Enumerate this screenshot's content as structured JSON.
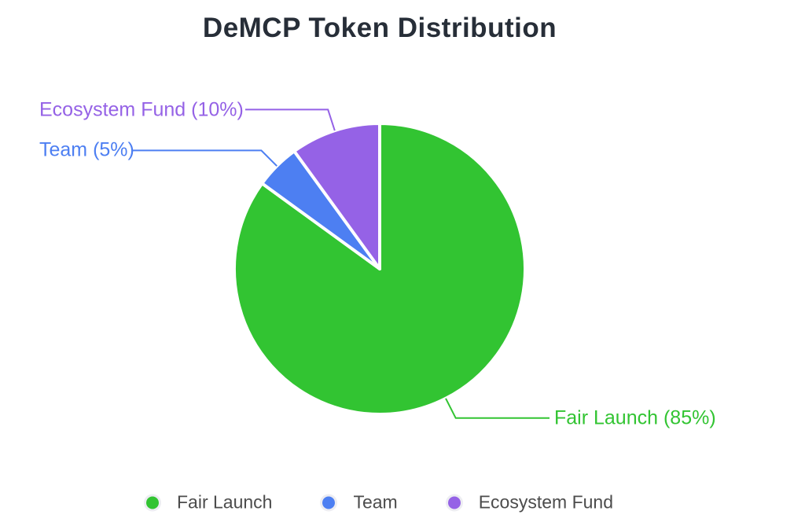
{
  "title": "DeMCP Token Distribution",
  "chart_data": {
    "type": "pie",
    "title": "DeMCP Token Distribution",
    "unit": "percent",
    "start_angle": "12-oclock",
    "direction": "clockwise",
    "grid": false,
    "legend_position": "bottom",
    "categories": [
      "Fair Launch",
      "Team",
      "Ecosystem Fund"
    ],
    "values": [
      85,
      5,
      10
    ],
    "series": [
      {
        "name": "Fair Launch",
        "value": 85,
        "color": "#32c432",
        "callout_label": "Fair Launch (85%)"
      },
      {
        "name": "Team",
        "value": 5,
        "color": "#4d7ff2",
        "callout_label": "Team (5%)"
      },
      {
        "name": "Ecosystem Fund",
        "value": 10,
        "color": "#9562e6",
        "callout_label": "Ecosystem Fund (10%)"
      }
    ]
  },
  "colors": {
    "background": "#ffffff",
    "title_text": "#272e38",
    "legend_text": "#4c4c4c",
    "slice_border": "#ffffff"
  }
}
